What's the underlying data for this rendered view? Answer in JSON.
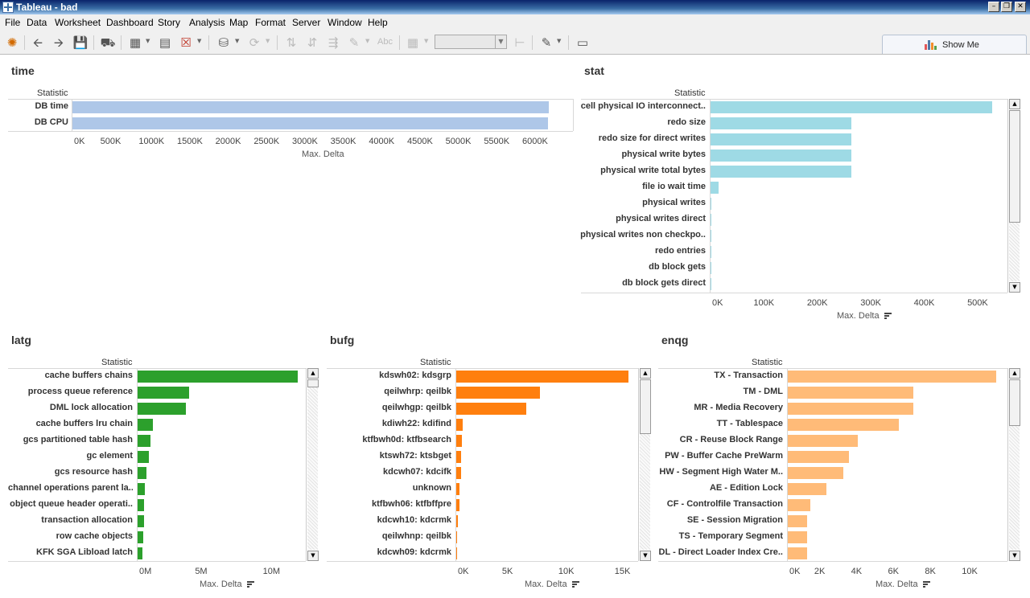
{
  "window": {
    "title": "Tableau - bad"
  },
  "menu": [
    "File",
    "Data",
    "Worksheet",
    "Dashboard",
    "Story",
    "Analysis",
    "Map",
    "Format",
    "Server",
    "Window",
    "Help"
  ],
  "toolbar": {
    "format_label": "Abc",
    "show_me_label": "Show Me"
  },
  "colors": {
    "time": "#aec7e8",
    "stat": "#9edae5",
    "latg": "#2ca02c",
    "bufg": "#ff7f0e",
    "enqg": "#ffbb78"
  },
  "sheets": {
    "time": {
      "title": "time",
      "row_header": "Statistic"
    },
    "stat": {
      "title": "stat",
      "row_header": "Statistic"
    },
    "latg": {
      "title": "latg",
      "row_header": "Statistic"
    },
    "bufg": {
      "title": "bufg",
      "row_header": "Statistic"
    },
    "enqg": {
      "title": "enqg",
      "row_header": "Statistic"
    }
  },
  "chart_data": [
    {
      "id": "time",
      "type": "bar",
      "title": "time",
      "orientation": "horizontal",
      "ylabel": "Statistic",
      "xlabel": "Max. Delta",
      "xlim": [
        0,
        6500000
      ],
      "categories": [
        "DB time",
        "DB CPU"
      ],
      "values": [
        6210000,
        6200000
      ],
      "ticks": [
        0,
        500000,
        1000000,
        1500000,
        2000000,
        2500000,
        3000000,
        3500000,
        4000000,
        4500000,
        5000000,
        5500000,
        6000000
      ],
      "tick_labels": [
        "0K",
        "500K",
        "1000K",
        "1500K",
        "2000K",
        "2500K",
        "3000K",
        "3500K",
        "4000K",
        "4500K",
        "5000K",
        "5500K",
        "6000K"
      ]
    },
    {
      "id": "stat",
      "type": "bar",
      "title": "stat",
      "orientation": "horizontal",
      "ylabel": "Statistic",
      "xlabel": "Max. Delta",
      "sorted": true,
      "xlim": [
        0,
        560000
      ],
      "categories": [
        "cell physical IO interconnect..",
        "redo size",
        "redo size for direct writes",
        "physical write bytes",
        "physical write total bytes",
        "file io wait time",
        "physical writes",
        "physical writes direct",
        "physical writes non checkpo..",
        "redo entries",
        "db block gets",
        "db block gets direct"
      ],
      "values": [
        527000,
        264000,
        264000,
        264000,
        264000,
        15000,
        300,
        300,
        300,
        200,
        200,
        200
      ],
      "ticks": [
        0,
        100000,
        200000,
        300000,
        400000,
        500000
      ],
      "tick_labels": [
        "0K",
        "100K",
        "200K",
        "300K",
        "400K",
        "500K"
      ]
    },
    {
      "id": "latg",
      "type": "bar",
      "title": "latg",
      "orientation": "horizontal",
      "ylabel": "Statistic",
      "xlabel": "Max. Delta",
      "sorted": true,
      "xlim": [
        0,
        12000000
      ],
      "categories": [
        "cache buffers chains",
        "process queue reference",
        "DML lock allocation",
        "cache buffers lru chain",
        "gcs partitioned table hash",
        "gc element",
        "gcs resource hash",
        "channel operations parent la..",
        "object queue header operati..",
        "transaction allocation",
        "row cache objects",
        "KFK SGA Libload latch"
      ],
      "values": [
        11800000,
        3800000,
        3550000,
        1150000,
        950000,
        850000,
        650000,
        550000,
        500000,
        450000,
        400000,
        380000
      ],
      "ticks": [
        0,
        5000000,
        10000000
      ],
      "tick_labels": [
        "0M",
        "5M",
        "10M"
      ]
    },
    {
      "id": "bufg",
      "type": "bar",
      "title": "bufg",
      "orientation": "horizontal",
      "ylabel": "Statistic",
      "xlabel": "Max. Delta",
      "sorted": true,
      "xlim": [
        0,
        16000
      ],
      "categories": [
        "kdswh02: kdsgrp",
        "qeilwhrp: qeilbk",
        "qeilwhgp: qeilbk",
        "kdiwh22: kdifind",
        "ktfbwh0d: ktfbsearch",
        "ktswh72: ktsbget",
        "kdcwh07: kdcifk",
        "unknown",
        "ktfbwh06: ktfbffpre",
        "kdcwh10: kdcrmk",
        "qeilwhnp: qeilbk",
        "kdcwh09: kdcrmk"
      ],
      "values": [
        15300,
        7400,
        6200,
        600,
        500,
        450,
        450,
        300,
        250,
        150,
        100,
        50
      ],
      "ticks": [
        0,
        5000,
        10000,
        15000
      ],
      "tick_labels": [
        "0K",
        "5K",
        "10K",
        "15K"
      ]
    },
    {
      "id": "enqg",
      "type": "bar",
      "title": "enqg",
      "orientation": "horizontal",
      "ylabel": "Statistic",
      "xlabel": "Max. Delta",
      "sorted": true,
      "xlim": [
        0,
        12000
      ],
      "categories": [
        "TX - Transaction",
        "TM - DML",
        "MR - Media Recovery",
        "TT - Tablespace",
        "CR - Reuse Block Range",
        "PW - Buffer Cache PreWarm",
        "HW - Segment High Water M..",
        "AE - Edition Lock",
        "CF - Controlfile Transaction",
        "SE - Session Migration",
        "TS - Temporary Segment",
        "DL - Direct Loader Index Cre.."
      ],
      "values": [
        11300,
        6800,
        6800,
        6000,
        3800,
        3300,
        3000,
        2100,
        1200,
        1050,
        1050,
        1050
      ],
      "ticks": [
        0,
        2000,
        4000,
        6000,
        8000,
        10000
      ],
      "tick_labels": [
        "0K",
        "2K",
        "4K",
        "6K",
        "8K",
        "10K"
      ]
    }
  ]
}
